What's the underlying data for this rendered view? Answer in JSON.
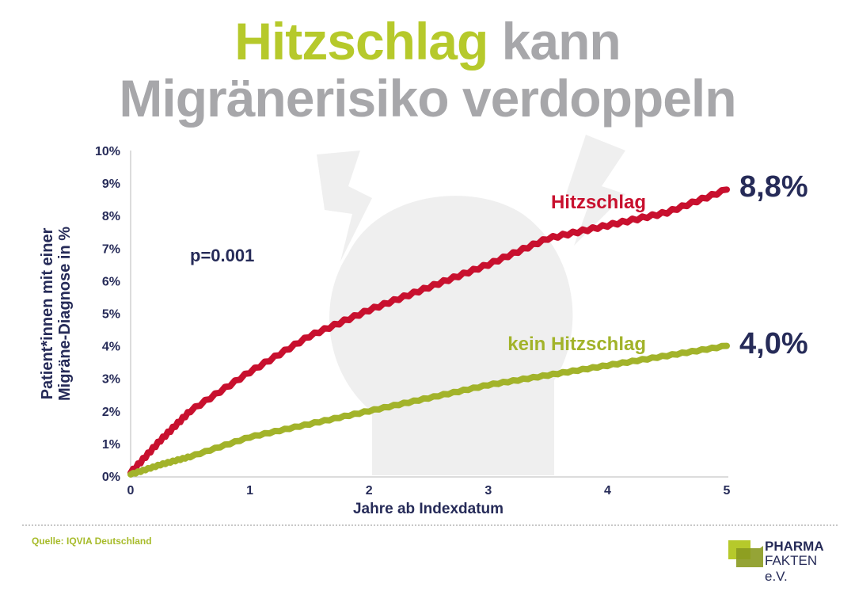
{
  "title": {
    "highlight": "Hitzschlag",
    "rest1": " kann",
    "line2": "Migränerisiko verdoppeln"
  },
  "source": "Quelle: IQVIA Deutschland",
  "logo": {
    "line1": "PHARMA",
    "line2": "FAKTEN e.V."
  },
  "colors": {
    "red": "#c8102e",
    "green": "#a2b32a",
    "navy": "#262b58",
    "grey": "#a7a7aa"
  },
  "chart_data": {
    "type": "line",
    "xlabel": "Jahre ab Indexdatum",
    "ylabel_line1": "Patient*innen mit einer",
    "ylabel_line2": "Migräne-Diagnose in %",
    "xlim": [
      0,
      5
    ],
    "ylim": [
      0,
      10
    ],
    "xticks": [
      "0",
      "1",
      "2",
      "3",
      "4",
      "5"
    ],
    "yticks": [
      "0%",
      "1%",
      "2%",
      "3%",
      "4%",
      "5%",
      "6%",
      "7%",
      "8%",
      "9%",
      "10%"
    ],
    "annotation": "p=0.001",
    "x": [
      0,
      0.25,
      0.5,
      1,
      1.5,
      2,
      2.5,
      3,
      3.5,
      4,
      4.5,
      5
    ],
    "series": [
      {
        "name": "Hitzschlag",
        "end_label": "8,8%",
        "color": "#c8102e",
        "values": [
          0.1,
          1.1,
          2.0,
          3.2,
          4.3,
          5.1,
          5.8,
          6.5,
          7.3,
          7.7,
          8.1,
          8.8
        ]
      },
      {
        "name": "kein Hitzschlag",
        "end_label": "4,0%",
        "color": "#a2b32a",
        "values": [
          0.05,
          0.35,
          0.6,
          1.2,
          1.6,
          2.0,
          2.4,
          2.8,
          3.1,
          3.4,
          3.7,
          4.0
        ]
      }
    ]
  }
}
